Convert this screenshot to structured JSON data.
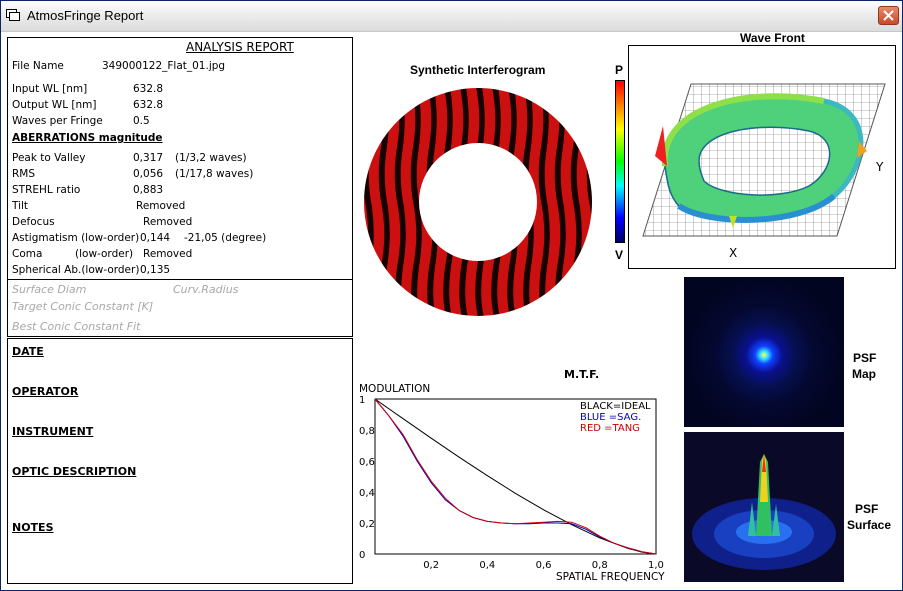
{
  "window": {
    "title": "AtmosFringe  Report"
  },
  "report": {
    "heading": "ANALYSIS  REPORT",
    "file_label": "File Name",
    "file_value": "349000122_Flat_01.jpg",
    "input_wl_label": "Input  WL [nm]",
    "input_wl_value": "632.8",
    "output_wl_label": "Output WL [nm]",
    "output_wl_value": "632.8",
    "wpf_label": "Waves per Fringe",
    "wpf_value": "0.5",
    "aberr_heading": "ABERRATIONS magnitude",
    "ptv_label": "Peak to Valley",
    "ptv_value": "0,317",
    "ptv_waves": "(1/3,2 waves)",
    "rms_label": "RMS",
    "rms_value": "0,056",
    "rms_waves": "(1/17,8 waves)",
    "strehl_label": "STREHL ratio",
    "strehl_value": "0,883",
    "tilt_label": "Tilt",
    "tilt_value": "Removed",
    "defocus_label": "Defocus",
    "defocus_value": "Removed",
    "astig_label": "Astigmatism  (low-order)",
    "astig_value": "0,144",
    "astig_angle": "-21,05  (degree)",
    "coma_label": "Coma",
    "coma_order": "(low-order)",
    "coma_value": "Removed",
    "spherical_label": "Spherical Ab.(low-order)",
    "spherical_value": "0,135",
    "surface_diam": "Surface Diam",
    "curv_radius": "Curv.Radius",
    "target_conic": "Target Conic Constant [K]",
    "best_conic": "Best Conic Constant Fit"
  },
  "info": {
    "date": "DATE",
    "operator": "OPERATOR",
    "instrument": "INSTRUMENT",
    "optic": "OPTIC DESCRIPTION",
    "notes": "NOTES"
  },
  "interferogram": {
    "title": "Synthetic Interferogram"
  },
  "wavefront": {
    "title": "Wave Front",
    "scale_top": "P",
    "scale_bottom": "V",
    "x_label": "X",
    "y_label": "Y"
  },
  "psf": {
    "map_label_1": "PSF",
    "map_label_2": "Map",
    "surface_label_1": "PSF",
    "surface_label_2": "Surface"
  },
  "chart_data": {
    "type": "line",
    "title": "M.T.F.",
    "ylabel": "MODULATION",
    "xlabel": "SPATIAL FREQUENCY",
    "xlim": [
      0,
      1
    ],
    "ylim": [
      0,
      1
    ],
    "x_ticks": [
      "0,2",
      "0,4",
      "0,6",
      "0,8",
      "1,0"
    ],
    "y_ticks": [
      "0",
      "0,2",
      "0,4",
      "0,6",
      "0,8",
      "1"
    ],
    "legend": [
      "BLACK=IDEAL",
      "BLUE  =SAG.",
      "RED    =TANG"
    ],
    "colors": {
      "ideal": "#000000",
      "sag": "#0000cc",
      "tang": "#cc0000"
    },
    "series": [
      {
        "name": "BLACK=IDEAL",
        "x": [
          0,
          0.05,
          0.1,
          0.2,
          0.3,
          0.4,
          0.5,
          0.6,
          0.7,
          0.8,
          0.9,
          0.95,
          1.0
        ],
        "y": [
          1.0,
          0.936,
          0.873,
          0.747,
          0.624,
          0.505,
          0.391,
          0.285,
          0.189,
          0.104,
          0.036,
          0.012,
          0
        ]
      },
      {
        "name": "BLUE  =SAG.",
        "x": [
          0,
          0.05,
          0.1,
          0.15,
          0.2,
          0.25,
          0.3,
          0.35,
          0.4,
          0.45,
          0.5,
          0.55,
          0.6,
          0.65,
          0.7,
          0.75,
          0.8,
          0.85,
          0.9,
          0.95,
          1.0
        ],
        "y": [
          1.0,
          0.89,
          0.76,
          0.6,
          0.46,
          0.35,
          0.28,
          0.235,
          0.21,
          0.2,
          0.195,
          0.195,
          0.2,
          0.2,
          0.195,
          0.16,
          0.11,
          0.07,
          0.04,
          0.015,
          0
        ]
      },
      {
        "name": "RED    =TANG",
        "x": [
          0,
          0.05,
          0.1,
          0.15,
          0.2,
          0.25,
          0.3,
          0.35,
          0.4,
          0.45,
          0.5,
          0.55,
          0.6,
          0.65,
          0.7,
          0.75,
          0.8,
          0.85,
          0.9,
          0.95,
          1.0
        ],
        "y": [
          1.0,
          0.89,
          0.77,
          0.61,
          0.47,
          0.36,
          0.28,
          0.235,
          0.21,
          0.2,
          0.195,
          0.2,
          0.205,
          0.21,
          0.205,
          0.17,
          0.115,
          0.07,
          0.04,
          0.015,
          0
        ]
      }
    ]
  }
}
